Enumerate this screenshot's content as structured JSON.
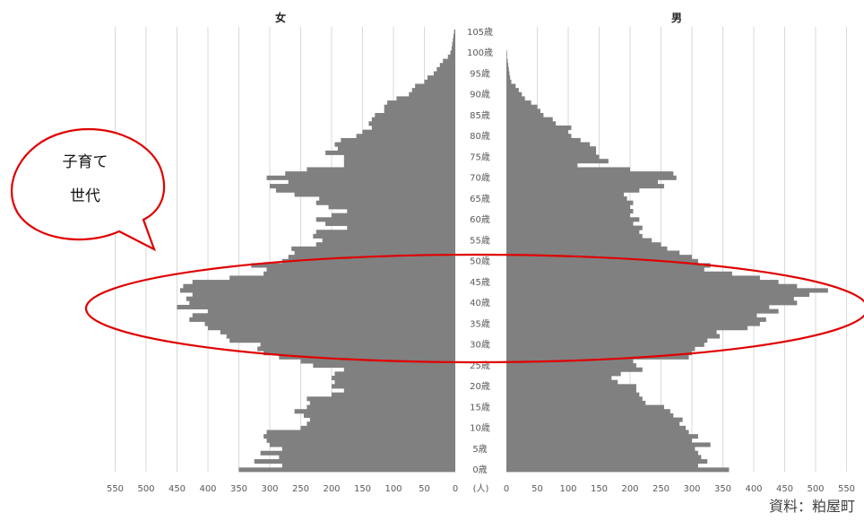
{
  "chart_data": {
    "type": "bar",
    "orientation": "horizontal-population-pyramid",
    "left_title": "女",
    "right_title": "男",
    "unit_label": "(人)",
    "age_suffix": "歳",
    "age_labels": [
      "105歳",
      "100歳",
      "95歳",
      "90歳",
      "85歳",
      "80歳",
      "75歳",
      "70歳",
      "65歳",
      "60歳",
      "55歳",
      "50歳",
      "45歳",
      "40歳",
      "35歳",
      "30歳",
      "25歳",
      "20歳",
      "15歳",
      "10歳",
      "5歳",
      "0歳"
    ],
    "age_range": [
      0,
      105
    ],
    "x_ticks": [
      550,
      500,
      450,
      400,
      350,
      300,
      250,
      200,
      150,
      100,
      50,
      0
    ],
    "xlim": [
      0,
      550
    ],
    "grid": true,
    "bar_color": "#808080",
    "ages": [
      0,
      1,
      2,
      3,
      4,
      5,
      6,
      7,
      8,
      9,
      10,
      11,
      12,
      13,
      14,
      15,
      16,
      17,
      18,
      19,
      20,
      21,
      22,
      23,
      24,
      25,
      26,
      27,
      28,
      29,
      30,
      31,
      32,
      33,
      34,
      35,
      36,
      37,
      38,
      39,
      40,
      41,
      42,
      43,
      44,
      45,
      46,
      47,
      48,
      49,
      50,
      51,
      52,
      53,
      54,
      55,
      56,
      57,
      58,
      59,
      60,
      61,
      62,
      63,
      64,
      65,
      66,
      67,
      68,
      69,
      70,
      71,
      72,
      73,
      74,
      75,
      76,
      77,
      78,
      79,
      80,
      81,
      82,
      83,
      84,
      85,
      86,
      87,
      88,
      89,
      90,
      91,
      92,
      93,
      94,
      95,
      96,
      97,
      98,
      99,
      100,
      101,
      102,
      103,
      104,
      105
    ],
    "series": [
      {
        "name": "女",
        "values": [
          350,
          280,
          325,
          285,
          315,
          280,
          300,
          305,
          310,
          305,
          250,
          240,
          235,
          245,
          260,
          240,
          235,
          240,
          200,
          180,
          200,
          195,
          200,
          195,
          180,
          230,
          250,
          285,
          310,
          320,
          315,
          365,
          370,
          380,
          400,
          405,
          430,
          425,
          400,
          450,
          430,
          435,
          425,
          445,
          440,
          425,
          365,
          310,
          305,
          330,
          280,
          270,
          260,
          265,
          225,
          215,
          230,
          225,
          175,
          210,
          225,
          200,
          175,
          205,
          225,
          220,
          260,
          290,
          300,
          270,
          305,
          275,
          240,
          180,
          180,
          180,
          210,
          190,
          195,
          185,
          160,
          150,
          135,
          140,
          135,
          130,
          115,
          115,
          110,
          95,
          75,
          70,
          65,
          50,
          45,
          35,
          30,
          25,
          20,
          12,
          8,
          6,
          5,
          4,
          3,
          2
        ]
      },
      {
        "name": "男",
        "values": [
          360,
          310,
          325,
          315,
          310,
          305,
          330,
          300,
          310,
          295,
          290,
          280,
          285,
          270,
          265,
          255,
          225,
          220,
          215,
          210,
          210,
          180,
          170,
          185,
          220,
          210,
          205,
          295,
          300,
          305,
          320,
          325,
          345,
          340,
          390,
          410,
          420,
          405,
          440,
          425,
          470,
          465,
          490,
          520,
          470,
          440,
          410,
          365,
          320,
          330,
          310,
          300,
          280,
          260,
          250,
          235,
          220,
          215,
          220,
          205,
          215,
          200,
          205,
          200,
          205,
          195,
          190,
          215,
          255,
          245,
          275,
          270,
          200,
          115,
          165,
          150,
          145,
          145,
          135,
          120,
          105,
          100,
          105,
          80,
          75,
          60,
          55,
          50,
          40,
          30,
          25,
          20,
          15,
          8,
          6,
          5,
          4,
          3,
          2,
          1,
          1,
          0,
          0,
          0,
          0,
          0
        ]
      }
    ],
    "annotation": {
      "bubble_text_line1": "子育て",
      "bubble_text_line2": "世代",
      "highlight_ages": [
        25,
        50
      ],
      "highlight_color": "#e00000"
    }
  },
  "source_label": "資料：粕屋町"
}
